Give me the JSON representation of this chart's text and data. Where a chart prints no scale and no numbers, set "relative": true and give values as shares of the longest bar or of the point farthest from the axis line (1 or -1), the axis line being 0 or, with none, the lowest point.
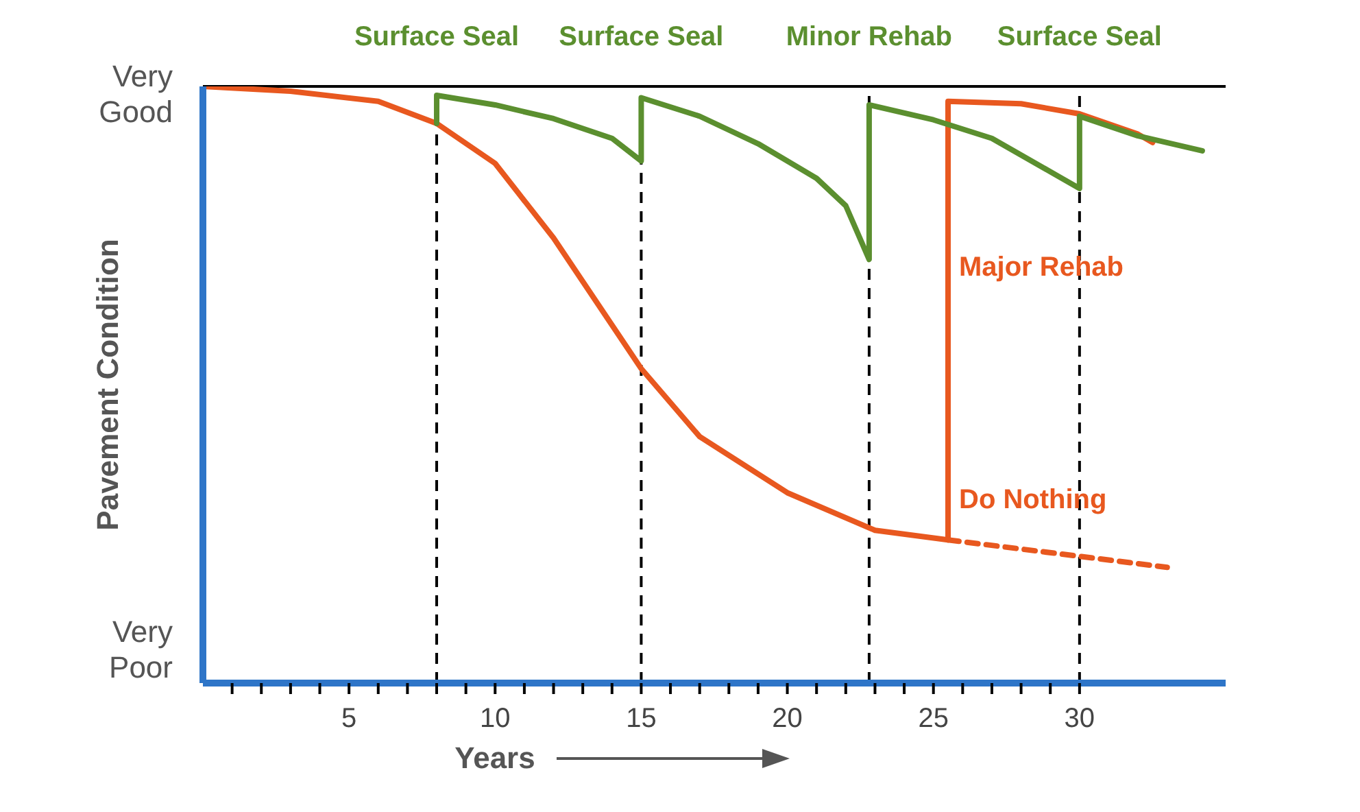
{
  "chart_data": {
    "type": "line",
    "relative": true,
    "xlabel": "Years",
    "ylabel": "Pavement Condition",
    "annotations": [
      "Very Good",
      "Very Poor"
    ],
    "xlim": [
      0,
      35
    ],
    "xticks": [
      {
        "value": 1,
        "label": null
      },
      {
        "value": 2,
        "label": null
      },
      {
        "value": 3,
        "label": null
      },
      {
        "value": 4,
        "label": null
      },
      5,
      {
        "value": 6,
        "label": null
      },
      {
        "value": 7,
        "label": null
      },
      {
        "value": 8,
        "label": null
      },
      {
        "value": 9,
        "label": null
      },
      10,
      {
        "value": 11,
        "label": null
      },
      {
        "value": 12,
        "label": null
      },
      {
        "value": 13,
        "label": null
      },
      {
        "value": 14,
        "label": null
      },
      15,
      {
        "value": 16,
        "label": null
      },
      {
        "value": 17,
        "label": null
      },
      {
        "value": 18,
        "label": null
      },
      {
        "value": 19,
        "label": null
      },
      20,
      {
        "value": 21,
        "label": null
      },
      {
        "value": 22,
        "label": null
      },
      {
        "value": 23,
        "label": null
      },
      {
        "value": 24,
        "label": null
      },
      25,
      {
        "value": 26,
        "label": null
      },
      {
        "value": 27,
        "label": null
      },
      {
        "value": 28,
        "label": null
      },
      {
        "value": 29,
        "label": null
      },
      30
    ],
    "series": [
      {
        "color": "#e8581f",
        "x": [
          0,
          3,
          6,
          8,
          10,
          12,
          14,
          15,
          17,
          20,
          23,
          25.5
        ],
        "values": [
          1.0,
          0.992,
          0.975,
          0.938,
          0.871,
          0.746,
          0.6,
          0.527,
          0.413,
          0.319,
          0.256,
          0.24
        ]
      },
      {
        "name": "Do Nothing",
        "color": "#e8581f",
        "line_style": "dashed",
        "x": [
          25.5,
          33
        ],
        "values": [
          0.24,
          0.194
        ]
      },
      {
        "name": "Major Rehab",
        "color": "#e8581f",
        "x": [
          25.5,
          25.5,
          28,
          30,
          32,
          32.5
        ],
        "values": [
          0.24,
          0.975,
          0.971,
          0.954,
          0.92,
          0.906
        ]
      },
      {
        "color": "#5b8f2f",
        "x": [
          8,
          8,
          10,
          12,
          14,
          15,
          15,
          17,
          19,
          21,
          22,
          22.8,
          22.8,
          25,
          27,
          30,
          30,
          32,
          34.2
        ],
        "values": [
          0.938,
          0.985,
          0.969,
          0.946,
          0.913,
          0.875,
          0.981,
          0.95,
          0.904,
          0.846,
          0.8,
          0.71,
          0.969,
          0.944,
          0.913,
          0.829,
          0.95,
          0.917,
          0.892
        ]
      }
    ],
    "ref_lines": [
      {
        "axis": "y",
        "value": 1,
        "color": "#000000"
      },
      {
        "axis": "x",
        "value": 8,
        "label": "Surface Seal",
        "color": "#000000",
        "line_style": "dashed"
      },
      {
        "axis": "x",
        "value": 15,
        "label": "Surface Seal",
        "color": "#000000",
        "line_style": "dashed"
      },
      {
        "axis": "x",
        "value": 22.8,
        "label": "Minor Rehab",
        "color": "#000000",
        "line_style": "dashed"
      },
      {
        "axis": "x",
        "value": 30,
        "label": "Surface Seal",
        "color": "#000000",
        "line_style": "dashed"
      }
    ]
  }
}
